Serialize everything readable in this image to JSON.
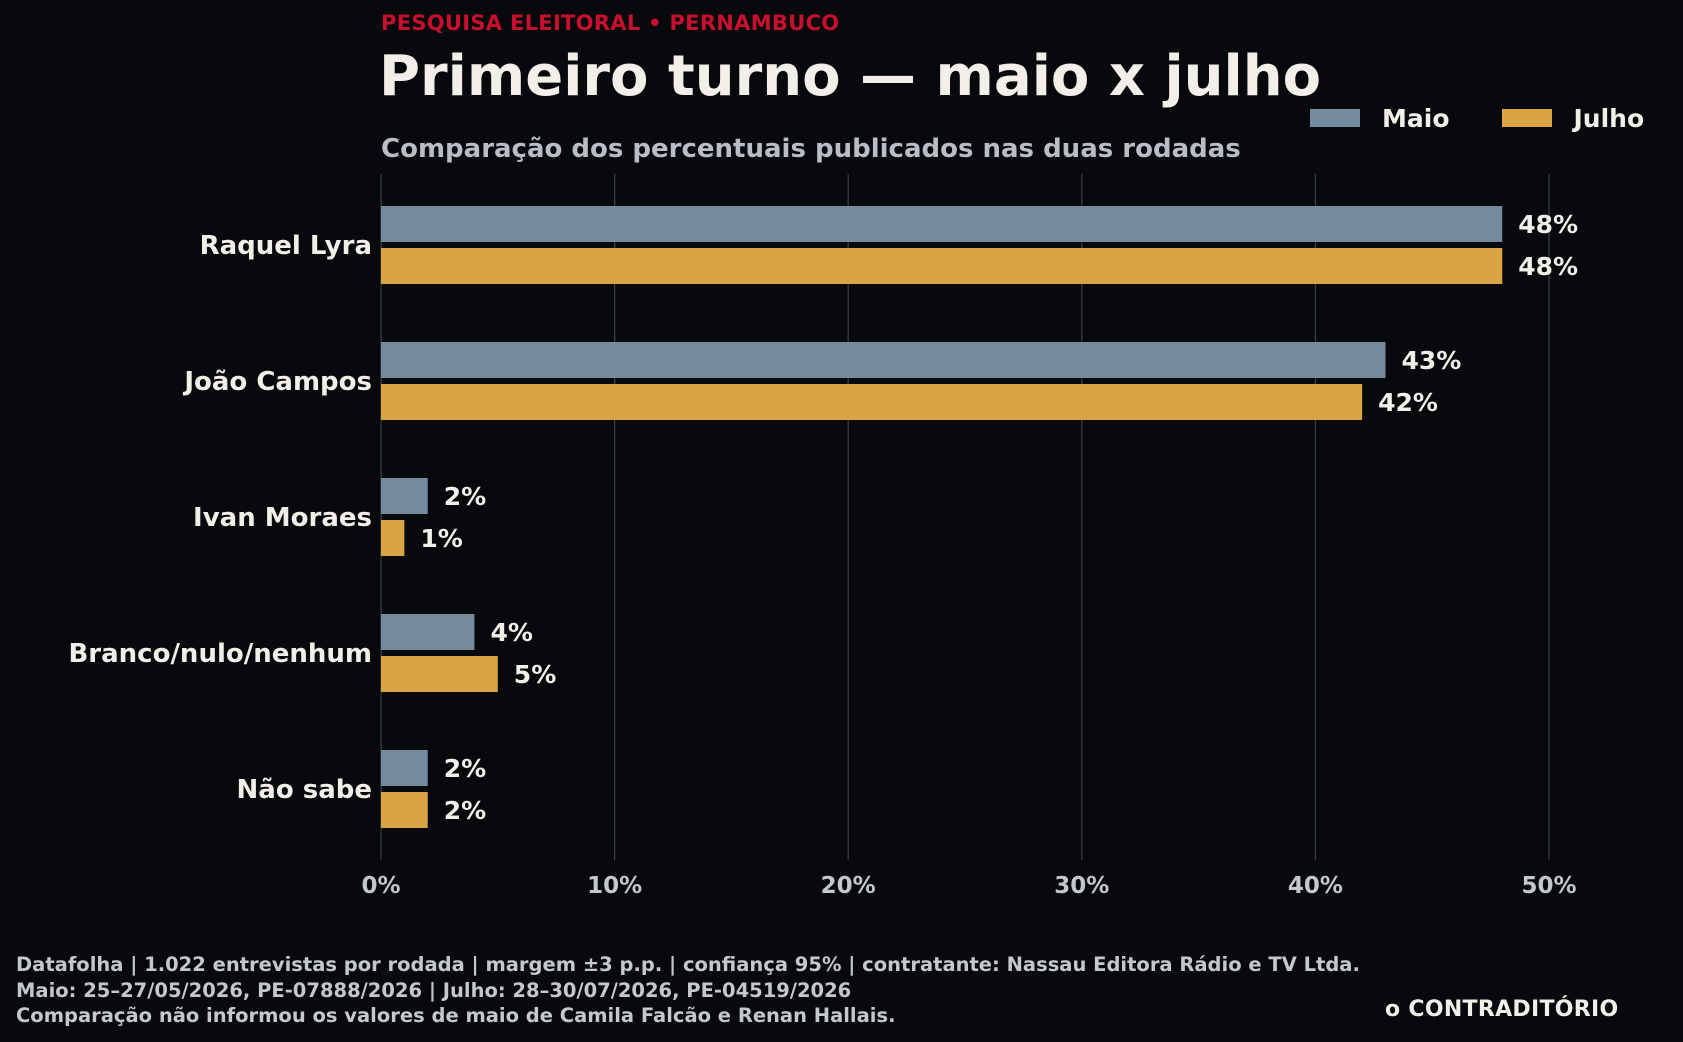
{
  "header": {
    "kicker": "PESQUISA ELEITORAL • PERNAMBUCO",
    "title": "Primeiro turno — maio x julho",
    "subtitle": "Comparação dos percentuais publicados nas duas rodadas"
  },
  "legend": [
    {
      "label": "Maio",
      "color": "#748a9d"
    },
    {
      "label": "Julho",
      "color": "#d9a441"
    }
  ],
  "chart_data": {
    "type": "bar",
    "orientation": "horizontal",
    "categories": [
      "Raquel Lyra",
      "João Campos",
      "Ivan Moraes",
      "Branco/nulo/nenhum",
      "Não sabe"
    ],
    "series": [
      {
        "name": "Maio",
        "values": [
          48,
          43,
          2,
          4,
          2
        ],
        "color": "#748a9d"
      },
      {
        "name": "Julho",
        "values": [
          48,
          42,
          1,
          5,
          2
        ],
        "color": "#d9a441"
      }
    ],
    "data_labels": [
      [
        "48%",
        "43%",
        "2%",
        "4%",
        "2%"
      ],
      [
        "48%",
        "42%",
        "1%",
        "5%",
        "2%"
      ]
    ],
    "xlim": [
      0,
      50
    ],
    "xticks": [
      0,
      10,
      20,
      30,
      40,
      50
    ],
    "xtick_labels": [
      "0%",
      "10%",
      "20%",
      "30%",
      "40%",
      "50%"
    ],
    "grid": "vertical",
    "legend_position": "top-right"
  },
  "footer": {
    "lines": [
      "Datafolha | 1.022 entrevistas por rodada | margem ±3 p.p. | confiança 95% | contratante: Nassau Editora Rádio e TV Ltda.",
      "Maio: 25–27/05/2026, PE-07888/2026 | Julho: 28–30/07/2026, PE-04519/2026",
      "Comparação não informou os valores de maio de Camila Falcão e Renan Hallais."
    ],
    "brand": "o CONTRADITÓRIO"
  }
}
